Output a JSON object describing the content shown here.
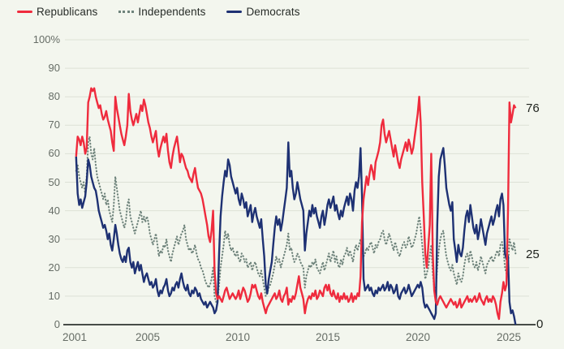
{
  "chart_data": {
    "type": "line",
    "unit": "%",
    "title": "",
    "xlabel": "",
    "ylabel": "",
    "ylim": [
      0,
      100
    ],
    "xlim": [
      2001,
      2025.6
    ],
    "grid": "horizontal",
    "legend_position": "top-left",
    "x_start_year": 2001.083,
    "x_step_years": 0.083333,
    "y_ticks": [
      "100%",
      "90",
      "80",
      "70",
      "60",
      "50",
      "40",
      "30",
      "20",
      "10",
      "0"
    ],
    "x_ticks": [
      "2001",
      "2005",
      "2010",
      "2015",
      "2020",
      "2025"
    ],
    "x_tick_years": [
      2001,
      2005,
      2010,
      2015,
      2020,
      2025
    ],
    "colors": {
      "background": "#f3f6ee",
      "gridline": "#dde1d6",
      "axis_line": "#474c48",
      "tick_text": "#666d66",
      "end_label_text": "#20241f"
    },
    "series": [
      {
        "name": "Republicans",
        "color": "#ef2b3d",
        "line_style": "solid",
        "end_label": "76",
        "values": [
          59,
          66,
          65,
          63,
          66,
          64,
          60,
          62,
          78,
          80,
          83,
          82,
          83,
          80,
          78,
          76,
          77,
          74,
          72,
          73,
          75,
          72,
          70,
          68,
          64,
          61,
          80,
          76,
          73,
          70,
          67,
          65,
          63,
          66,
          70,
          81,
          75,
          72,
          70,
          72,
          74,
          71,
          74,
          77,
          75,
          79,
          77,
          74,
          71,
          69,
          66,
          64,
          66,
          68,
          62,
          59,
          62,
          64,
          66,
          64,
          67,
          61,
          57,
          55,
          59,
          62,
          64,
          66,
          62,
          57,
          60,
          59,
          57,
          55,
          54,
          52,
          51,
          50,
          53,
          55,
          51,
          48,
          47,
          46,
          44,
          41,
          38,
          35,
          31,
          29,
          33,
          40,
          19,
          11,
          9,
          10,
          9,
          8,
          10,
          12,
          13,
          11,
          9,
          10,
          11,
          10,
          9,
          10,
          12,
          9,
          11,
          13,
          12,
          10,
          8,
          9,
          11,
          14,
          13,
          14,
          12,
          10,
          9,
          11,
          8,
          6,
          4,
          6,
          7,
          8,
          9,
          10,
          11,
          9,
          10,
          12,
          9,
          8,
          10,
          11,
          13,
          7,
          9,
          8,
          10,
          9,
          11,
          14,
          17,
          13,
          11,
          9,
          4,
          7,
          9,
          10,
          9,
          11,
          10,
          12,
          9,
          10,
          12,
          11,
          10,
          13,
          14,
          12,
          14,
          11,
          10,
          12,
          10,
          9,
          11,
          8,
          10,
          9,
          11,
          9,
          10,
          8,
          9,
          11,
          8,
          10,
          9,
          11,
          10,
          17,
          36,
          44,
          48,
          52,
          49,
          53,
          56,
          54,
          51,
          57,
          59,
          61,
          64,
          70,
          72,
          67,
          64,
          66,
          68,
          65,
          62,
          59,
          63,
          60,
          57,
          55,
          58,
          60,
          62,
          64,
          61,
          65,
          63,
          60,
          62,
          66,
          70,
          74,
          80,
          71,
          50,
          38,
          25,
          20,
          27,
          35,
          60,
          25,
          12,
          8,
          7,
          9,
          10,
          9,
          8,
          7,
          6,
          7,
          8,
          9,
          8,
          7,
          8,
          6,
          7,
          9,
          6,
          7,
          8,
          9,
          10,
          8,
          9,
          8,
          9,
          10,
          8,
          9,
          11,
          9,
          8,
          7,
          9,
          10,
          8,
          9,
          8,
          10,
          9,
          7,
          4,
          2,
          8,
          11,
          15,
          12,
          14,
          40,
          78,
          71,
          74,
          77,
          76
        ]
      },
      {
        "name": "Independents",
        "color": "#6e837b",
        "line_style": "dotted",
        "end_label": "25",
        "values": [
          54,
          56,
          52,
          50,
          48,
          50,
          46,
          52,
          64,
          66,
          60,
          58,
          62,
          56,
          52,
          50,
          48,
          46,
          44,
          46,
          42,
          44,
          40,
          38,
          36,
          42,
          52,
          48,
          44,
          40,
          38,
          36,
          34,
          36,
          42,
          44,
          38,
          36,
          34,
          32,
          34,
          36,
          38,
          40,
          36,
          38,
          36,
          38,
          36,
          32,
          30,
          28,
          30,
          32,
          28,
          24,
          26,
          25,
          28,
          27,
          30,
          26,
          24,
          22,
          25,
          27,
          29,
          31,
          28,
          30,
          32,
          33,
          35,
          30,
          28,
          26,
          27,
          25,
          26,
          28,
          25,
          23,
          22,
          20,
          19,
          17,
          15,
          14,
          13,
          14,
          16,
          20,
          10,
          8,
          9,
          14,
          20,
          24,
          28,
          33,
          30,
          32,
          28,
          26,
          27,
          25,
          24,
          26,
          23,
          22,
          25,
          24,
          22,
          23,
          20,
          21,
          22,
          19,
          21,
          22,
          20,
          18,
          17,
          19,
          16,
          13,
          10,
          11,
          13,
          14,
          16,
          18,
          21,
          24,
          22,
          23,
          20,
          22,
          24,
          26,
          28,
          32,
          26,
          27,
          24,
          22,
          23,
          25,
          24,
          22,
          21,
          20,
          13,
          17,
          19,
          21,
          20,
          22,
          21,
          23,
          20,
          19,
          18,
          20,
          22,
          19,
          21,
          23,
          25,
          22,
          24,
          26,
          22,
          24,
          21,
          20,
          23,
          21,
          24,
          25,
          27,
          24,
          26,
          24,
          22,
          26,
          28,
          26,
          28,
          30,
          26,
          24,
          25,
          27,
          26,
          28,
          29,
          27,
          25,
          28,
          27,
          29,
          30,
          32,
          33,
          30,
          28,
          30,
          32,
          30,
          28,
          26,
          29,
          27,
          25,
          24,
          26,
          28,
          29,
          27,
          28,
          31,
          29,
          27,
          28,
          30,
          32,
          35,
          38,
          34,
          28,
          22,
          16,
          18,
          20,
          24,
          28,
          18,
          13,
          12,
          20,
          26,
          30,
          32,
          33,
          28,
          24,
          22,
          20,
          19,
          21,
          18,
          16,
          14,
          18,
          16,
          15,
          17,
          21,
          24,
          25,
          22,
          26,
          24,
          21,
          20,
          22,
          19,
          21,
          24,
          22,
          20,
          18,
          21,
          22,
          23,
          24,
          22,
          23,
          25,
          26,
          24,
          28,
          29,
          26,
          20,
          18,
          20,
          30,
          28,
          26,
          29,
          25
        ]
      },
      {
        "name": "Democrats",
        "color": "#1e3173",
        "line_style": "solid",
        "end_label": "0",
        "values": [
          59,
          46,
          42,
          44,
          41,
          43,
          45,
          50,
          58,
          56,
          52,
          50,
          48,
          47,
          44,
          40,
          38,
          36,
          34,
          35,
          33,
          30,
          32,
          28,
          26,
          30,
          35,
          32,
          28,
          25,
          23,
          22,
          24,
          22,
          26,
          27,
          22,
          20,
          22,
          18,
          20,
          22,
          19,
          21,
          18,
          15,
          17,
          18,
          16,
          14,
          15,
          13,
          14,
          16,
          12,
          10,
          12,
          11,
          13,
          14,
          16,
          12,
          10,
          11,
          13,
          12,
          14,
          15,
          13,
          16,
          18,
          15,
          13,
          12,
          14,
          11,
          10,
          12,
          11,
          13,
          12,
          10,
          11,
          9,
          8,
          7,
          8,
          6,
          7,
          8,
          7,
          6,
          4,
          5,
          8,
          25,
          38,
          45,
          50,
          54,
          52,
          58,
          56,
          52,
          50,
          48,
          46,
          48,
          44,
          42,
          46,
          44,
          41,
          43,
          38,
          40,
          42,
          36,
          39,
          41,
          38,
          36,
          34,
          37,
          30,
          24,
          14,
          11,
          16,
          19,
          22,
          28,
          34,
          38,
          35,
          37,
          33,
          36,
          40,
          44,
          48,
          64,
          52,
          54,
          48,
          44,
          46,
          50,
          47,
          44,
          42,
          40,
          26,
          32,
          36,
          40,
          38,
          42,
          39,
          41,
          38,
          36,
          34,
          38,
          40,
          35,
          38,
          42,
          44,
          41,
          43,
          45,
          40,
          42,
          39,
          37,
          40,
          38,
          41,
          43,
          45,
          42,
          46,
          44,
          40,
          47,
          50,
          48,
          52,
          62,
          45,
          16,
          12,
          13,
          14,
          12,
          13,
          11,
          10,
          12,
          11,
          13,
          12,
          13,
          14,
          12,
          13,
          15,
          12,
          14,
          13,
          11,
          12,
          14,
          10,
          9,
          11,
          12,
          13,
          11,
          12,
          14,
          12,
          10,
          11,
          12,
          13,
          14,
          13,
          15,
          13,
          8,
          6,
          7,
          6,
          5,
          4,
          3,
          2,
          4,
          35,
          52,
          58,
          60,
          62,
          56,
          48,
          45,
          42,
          40,
          43,
          30,
          26,
          22,
          28,
          25,
          24,
          27,
          33,
          38,
          40,
          36,
          42,
          38,
          34,
          32,
          35,
          30,
          33,
          37,
          34,
          31,
          28,
          32,
          34,
          36,
          38,
          35,
          37,
          40,
          42,
          38,
          44,
          46,
          42,
          25,
          23,
          24,
          8,
          4,
          5,
          3,
          0
        ]
      }
    ]
  }
}
